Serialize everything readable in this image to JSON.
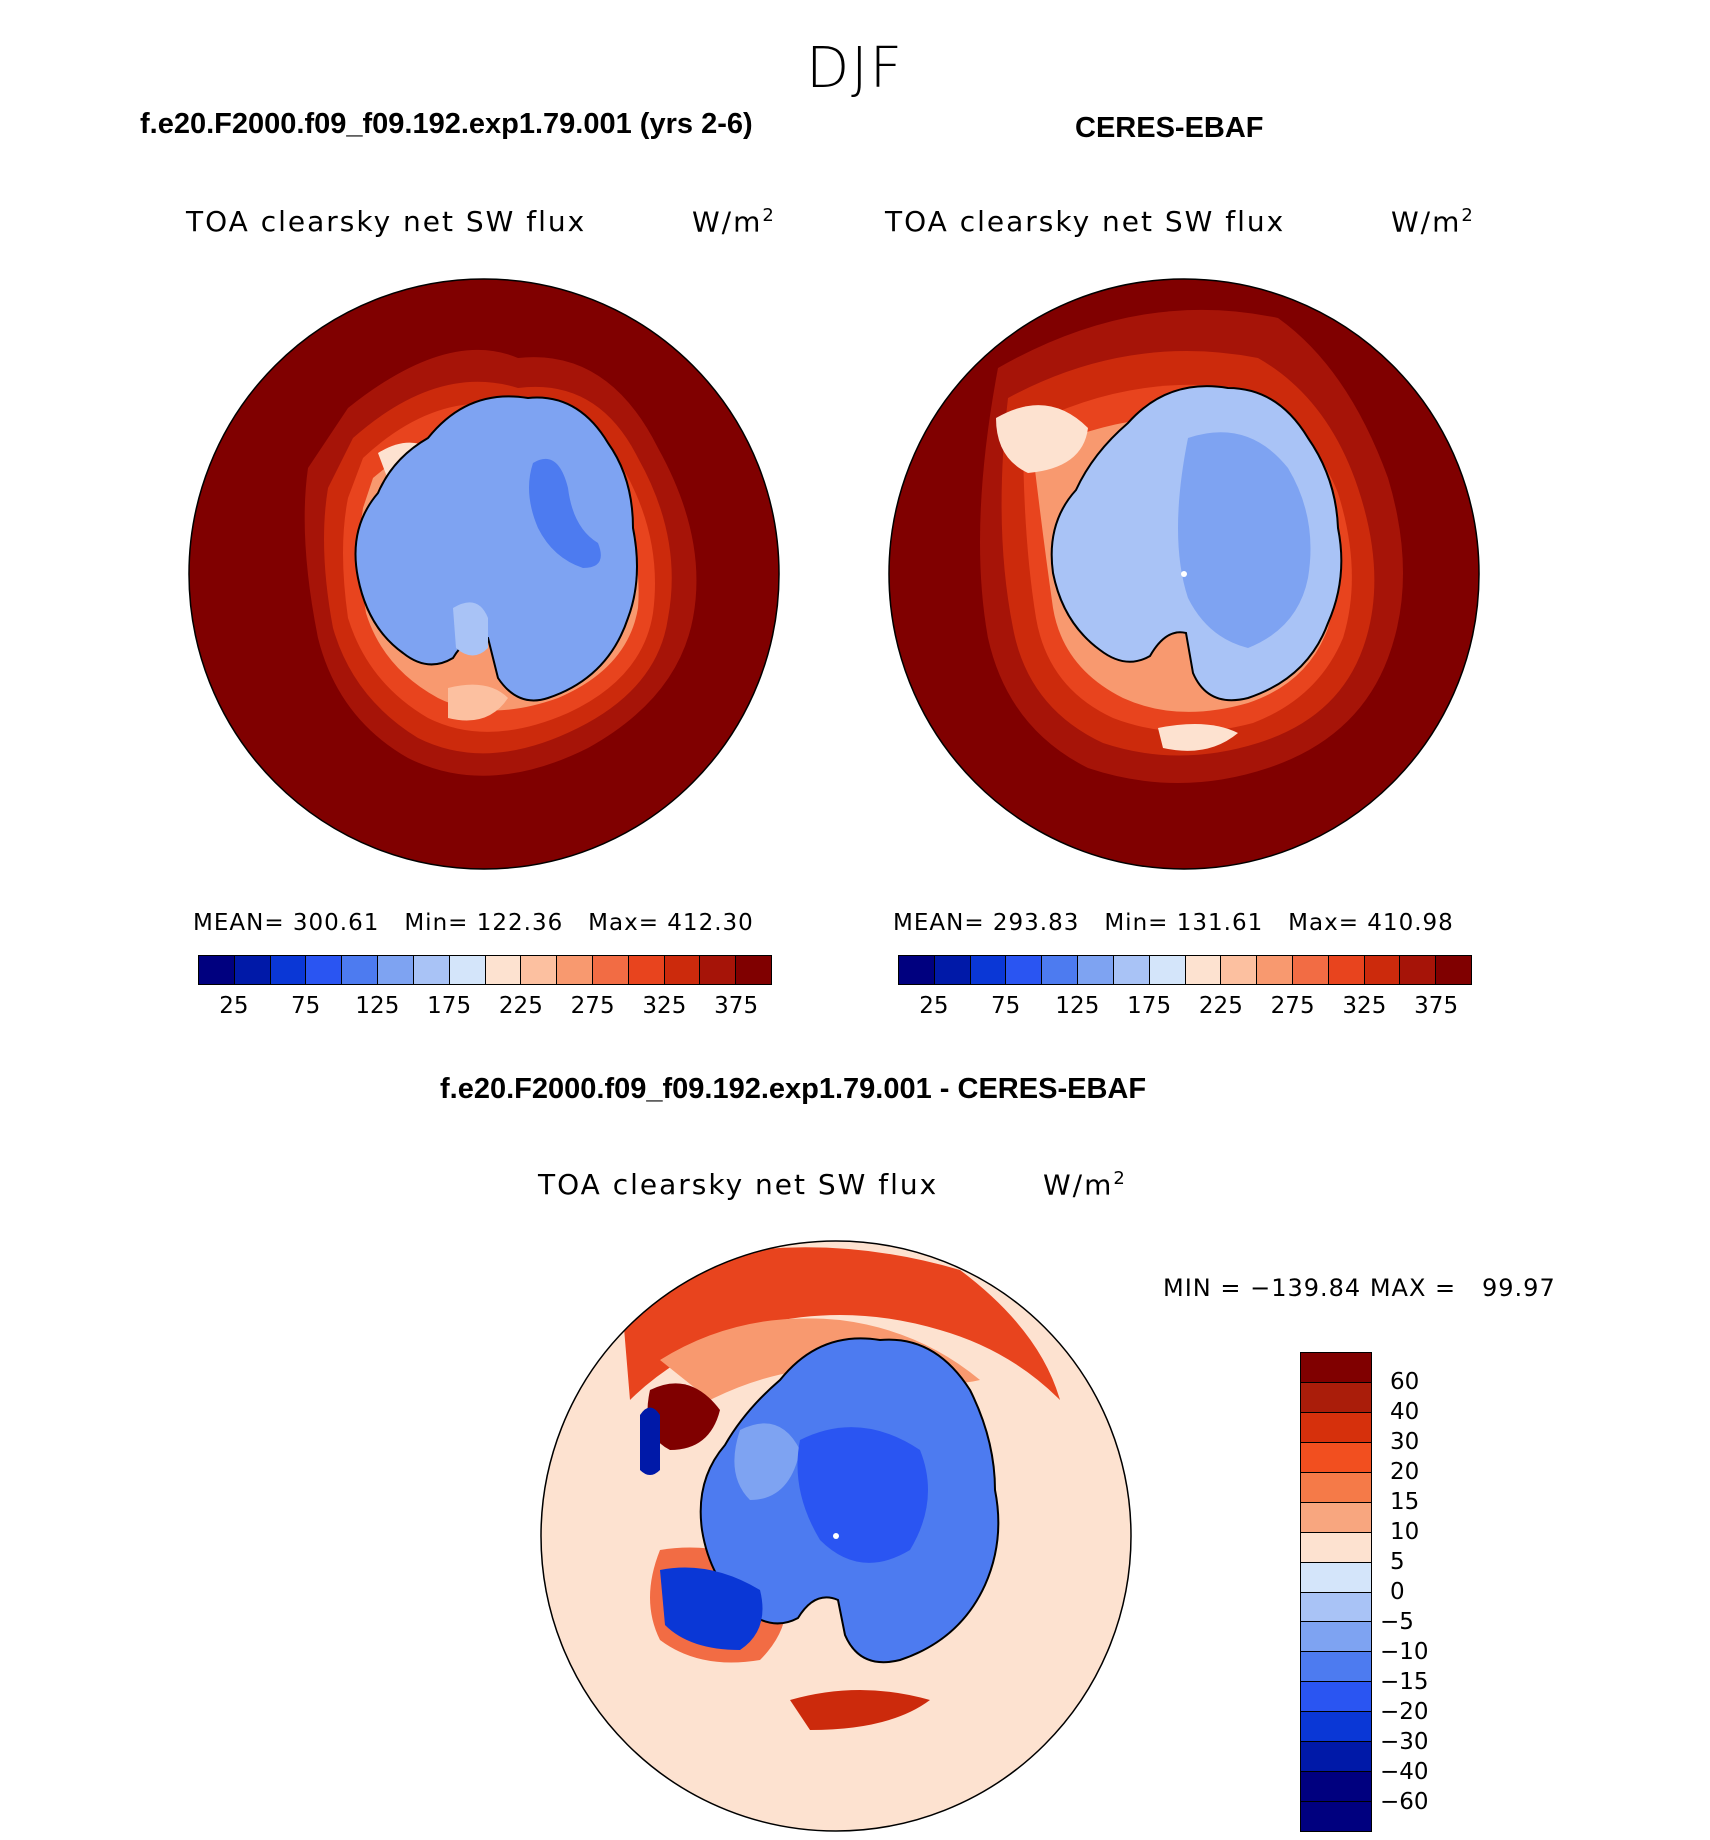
{
  "season": "DJF",
  "panels": {
    "model": {
      "case_title": "f.e20.F2000.f09_f09.192.exp1.79.001 (yrs 2-6)",
      "variable": "TOA clearsky net SW flux",
      "units": "W/m",
      "units_sup": "2",
      "stats": {
        "mean_label": "MEAN=",
        "mean": "300.61",
        "min_label": "Min=",
        "min": "122.36",
        "max_label": "Max=",
        "max": "412.30"
      }
    },
    "obs": {
      "case_title": "CERES-EBAF",
      "variable": "TOA clearsky net SW flux",
      "units": "W/m",
      "units_sup": "2",
      "stats": {
        "mean_label": "MEAN=",
        "mean": "293.83",
        "min_label": "Min=",
        "min": "131.61",
        "max_label": "Max=",
        "max": "410.98"
      }
    },
    "diff": {
      "case_title": "f.e20.F2000.f09_f09.192.exp1.79.001 - CERES-EBAF",
      "variable": "TOA clearsky net SW flux",
      "units": "W/m",
      "units_sup": "2",
      "minmax": "MIN = −139.84 MAX =   99.97"
    }
  },
  "abs_colorbar": {
    "colors": [
      "#00007f",
      "#0019a8",
      "#0a37d6",
      "#2a55f2",
      "#4d7bf0",
      "#7ea3f2",
      "#a9c3f6",
      "#d4e5fa",
      "#fde2d0",
      "#fcc0a0",
      "#f8996f",
      "#f26c44",
      "#e8441e",
      "#cc2a0c",
      "#a61408",
      "#800000"
    ],
    "ticks": [
      "25",
      "75",
      "125",
      "175",
      "225",
      "275",
      "325",
      "375"
    ]
  },
  "diff_colorbar": {
    "colors": [
      "#800000",
      "#aa1d0a",
      "#d6300c",
      "#f24f1f",
      "#f57a48",
      "#f8a67f",
      "#fde2d0",
      "#d4e5fa",
      "#a9c3f6",
      "#7ea3f2",
      "#4d7bf0",
      "#2a55f2",
      "#0a37d6",
      "#0019a8",
      "#00007f"
    ],
    "ticks": [
      "60",
      "40",
      "30",
      "20",
      "15",
      "10",
      "5",
      "0",
      "−5",
      "−10",
      "−15",
      "−20",
      "−30",
      "−40",
      "−60"
    ]
  }
}
